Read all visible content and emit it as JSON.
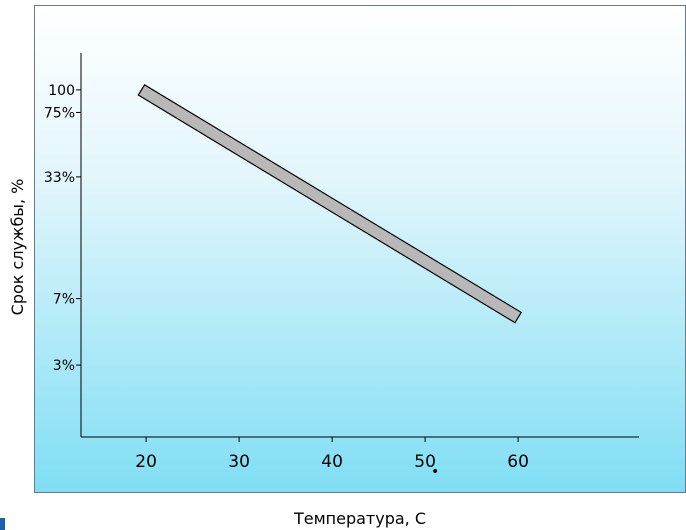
{
  "chart_data": {
    "type": "line",
    "title": "",
    "xlabel": "Температура, С",
    "ylabel": "Срок службы, %",
    "x_ticks": [
      20,
      30,
      40,
      50,
      60
    ],
    "x_tick_labels": [
      "20",
      "30",
      "40",
      "50",
      "60"
    ],
    "xlim": [
      13,
      73
    ],
    "y_scale": "log",
    "y_ticks": [
      100,
      75,
      33,
      7,
      3
    ],
    "y_tick_labels": [
      "100",
      "75%",
      "33%",
      "7%",
      "3%"
    ],
    "ylim": [
      1.2,
      160
    ],
    "grid": false,
    "legend": "none",
    "series": [
      {
        "x": [
          19.5,
          60
        ],
        "y": [
          100,
          5.5
        ]
      }
    ],
    "annotation": "•",
    "colors": {
      "line_fill": "#b8b8b8",
      "line_stroke": "#000000",
      "background_top": "#ffffff",
      "background_bottom": "#80def4"
    }
  }
}
